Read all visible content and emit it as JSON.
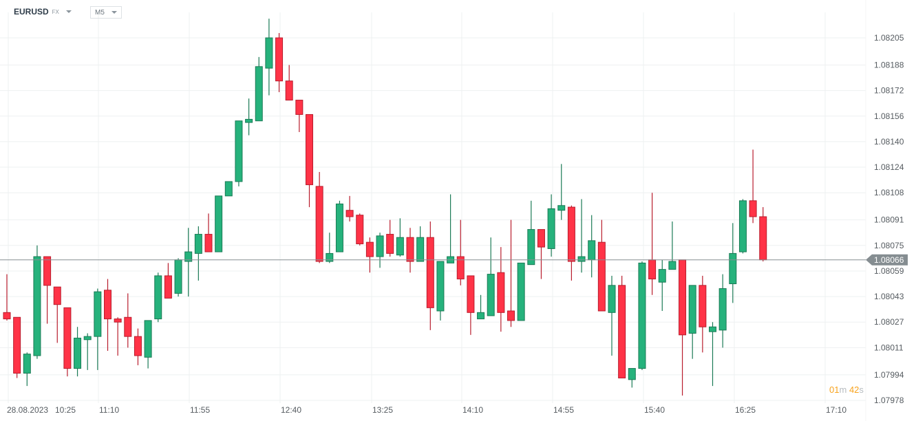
{
  "header": {
    "symbol": "EURUSD",
    "symbol_type": "FX",
    "timeframe": "M5"
  },
  "timer": {
    "minutes": "01",
    "m": "m",
    "seconds": "42",
    "s": "s"
  },
  "colors": {
    "up": "#26b27c",
    "up_border": "#1a7a55",
    "down": "#ff3347",
    "down_border": "#b81c2c",
    "last_price": "#858d91",
    "grid": "#eef0f1",
    "text": "#555b60"
  },
  "chart_data": {
    "type": "candlestick",
    "timeframe": "M5",
    "last_price": "1.08066",
    "ylim": [
      1.07978,
      1.08205
    ],
    "y_ticks": [
      "1.08205",
      "1.08188",
      "1.08172",
      "1.08156",
      "1.08140",
      "1.08124",
      "1.08108",
      "1.08091",
      "1.08075",
      "1.08059",
      "1.08043",
      "1.08027",
      "1.08011",
      "1.07994",
      "1.07978"
    ],
    "x_ticks": [
      "28.08.2023",
      "10:25",
      "11:10",
      "11:55",
      "12:40",
      "13:25",
      "14:10",
      "14:55",
      "15:40",
      "16:25",
      "17:10"
    ],
    "ohlc": [
      [
        1.08033,
        1.08057,
        1.08028,
        1.08029
      ],
      [
        1.0803,
        1.0803,
        1.07992,
        1.07995
      ],
      [
        1.07995,
        1.08008,
        1.07987,
        1.08007
      ],
      [
        1.08006,
        1.08075,
        1.08004,
        1.08068
      ],
      [
        1.08068,
        1.08068,
        1.08026,
        1.0805
      ],
      [
        1.08049,
        1.08049,
        1.08014,
        1.08038
      ],
      [
        1.08036,
        1.08036,
        1.07993,
        1.07998
      ],
      [
        1.07998,
        1.08024,
        1.07993,
        1.08017
      ],
      [
        1.08016,
        1.0802,
        1.07997,
        1.08018
      ],
      [
        1.08018,
        1.08048,
        1.07997,
        1.08046
      ],
      [
        1.08047,
        1.08054,
        1.08009,
        1.08029
      ],
      [
        1.08029,
        1.0803,
        1.08006,
        1.08027
      ],
      [
        1.0803,
        1.08045,
        1.08011,
        1.08018
      ],
      [
        1.08018,
        1.08023,
        1.08,
        1.08006
      ],
      [
        1.08005,
        1.08028,
        1.07998,
        1.08028
      ],
      [
        1.08029,
        1.08058,
        1.08027,
        1.08056
      ],
      [
        1.08056,
        1.08064,
        1.08042,
        1.08042
      ],
      [
        1.08045,
        1.08067,
        1.08043,
        1.08066
      ],
      [
        1.08065,
        1.08086,
        1.08043,
        1.08071
      ],
      [
        1.0807,
        1.08087,
        1.08053,
        1.08082
      ],
      [
        1.08082,
        1.08095,
        1.08071,
        1.08071
      ],
      [
        1.08071,
        1.08106,
        1.08071,
        1.08106
      ],
      [
        1.08106,
        1.08115,
        1.08106,
        1.08115
      ],
      [
        1.08115,
        1.08153,
        1.08112,
        1.08153
      ],
      [
        1.08152,
        1.08167,
        1.08144,
        1.08154
      ],
      [
        1.08153,
        1.08193,
        1.08153,
        1.08187
      ],
      [
        1.08186,
        1.08217,
        1.08169,
        1.08205
      ],
      [
        1.08205,
        1.08208,
        1.08171,
        1.08178
      ],
      [
        1.08178,
        1.08188,
        1.08166,
        1.08166
      ],
      [
        1.08166,
        1.08166,
        1.08146,
        1.08157
      ],
      [
        1.08157,
        1.08157,
        1.08099,
        1.08113
      ],
      [
        1.08112,
        1.08121,
        1.08064,
        1.08065
      ],
      [
        1.08065,
        1.08083,
        1.08064,
        1.0807
      ],
      [
        1.08071,
        1.08103,
        1.08071,
        1.08101
      ],
      [
        1.08097,
        1.08106,
        1.0809,
        1.08093
      ],
      [
        1.08094,
        1.08095,
        1.08075,
        1.08076
      ],
      [
        1.08077,
        1.0808,
        1.08058,
        1.08068
      ],
      [
        1.08068,
        1.08083,
        1.08061,
        1.08081
      ],
      [
        1.08082,
        1.08091,
        1.08068,
        1.0807
      ],
      [
        1.08069,
        1.08092,
        1.08068,
        1.0808
      ],
      [
        1.0808,
        1.08086,
        1.08058,
        1.08065
      ],
      [
        1.08065,
        1.08087,
        1.08065,
        1.0808
      ],
      [
        1.0808,
        1.0809,
        1.08022,
        1.08036
      ],
      [
        1.08034,
        1.08065,
        1.08028,
        1.08065
      ],
      [
        1.08064,
        1.08107,
        1.08064,
        1.08068
      ],
      [
        1.08068,
        1.08091,
        1.0805,
        1.08054
      ],
      [
        1.08056,
        1.08056,
        1.08019,
        1.08033
      ],
      [
        1.08029,
        1.08044,
        1.08029,
        1.08033
      ],
      [
        1.08031,
        1.0808,
        1.08031,
        1.08057
      ],
      [
        1.08058,
        1.08074,
        1.08021,
        1.08033
      ],
      [
        1.08034,
        1.08091,
        1.08024,
        1.08028
      ],
      [
        1.08028,
        1.08064,
        1.08028,
        1.08064
      ],
      [
        1.08063,
        1.08103,
        1.08063,
        1.08085
      ],
      [
        1.08085,
        1.08085,
        1.08054,
        1.08074
      ],
      [
        1.08073,
        1.08107,
        1.08068,
        1.08098
      ],
      [
        1.08097,
        1.08126,
        1.08091,
        1.081
      ],
      [
        1.08099,
        1.081,
        1.08053,
        1.08065
      ],
      [
        1.08065,
        1.08104,
        1.08058,
        1.08068
      ],
      [
        1.08066,
        1.08094,
        1.08055,
        1.08078
      ],
      [
        1.08077,
        1.08091,
        1.08034,
        1.08034
      ],
      [
        1.08033,
        1.08056,
        1.08006,
        1.0805
      ],
      [
        1.0805,
        1.08056,
        1.07992,
        1.07992
      ],
      [
        1.07991,
        1.07998,
        1.07986,
        1.07998
      ],
      [
        1.07998,
        1.08065,
        1.07997,
        1.08064
      ],
      [
        1.08066,
        1.08108,
        1.08044,
        1.08054
      ],
      [
        1.08052,
        1.08066,
        1.08034,
        1.0806
      ],
      [
        1.0806,
        1.0809,
        1.0806,
        1.08065
      ],
      [
        1.08066,
        1.08066,
        1.07981,
        1.08019
      ],
      [
        1.0802,
        1.0805,
        1.08004,
        1.0805
      ],
      [
        1.0805,
        1.08056,
        1.08008,
        1.08024
      ],
      [
        1.08021,
        1.08027,
        1.07987,
        1.08024
      ],
      [
        1.08022,
        1.08057,
        1.08011,
        1.08048
      ],
      [
        1.08051,
        1.08089,
        1.08039,
        1.0807
      ],
      [
        1.08071,
        1.08104,
        1.0807,
        1.08103
      ],
      [
        1.08103,
        1.08135,
        1.08089,
        1.08093
      ],
      [
        1.08093,
        1.08099,
        1.08065,
        1.08066
      ]
    ]
  }
}
